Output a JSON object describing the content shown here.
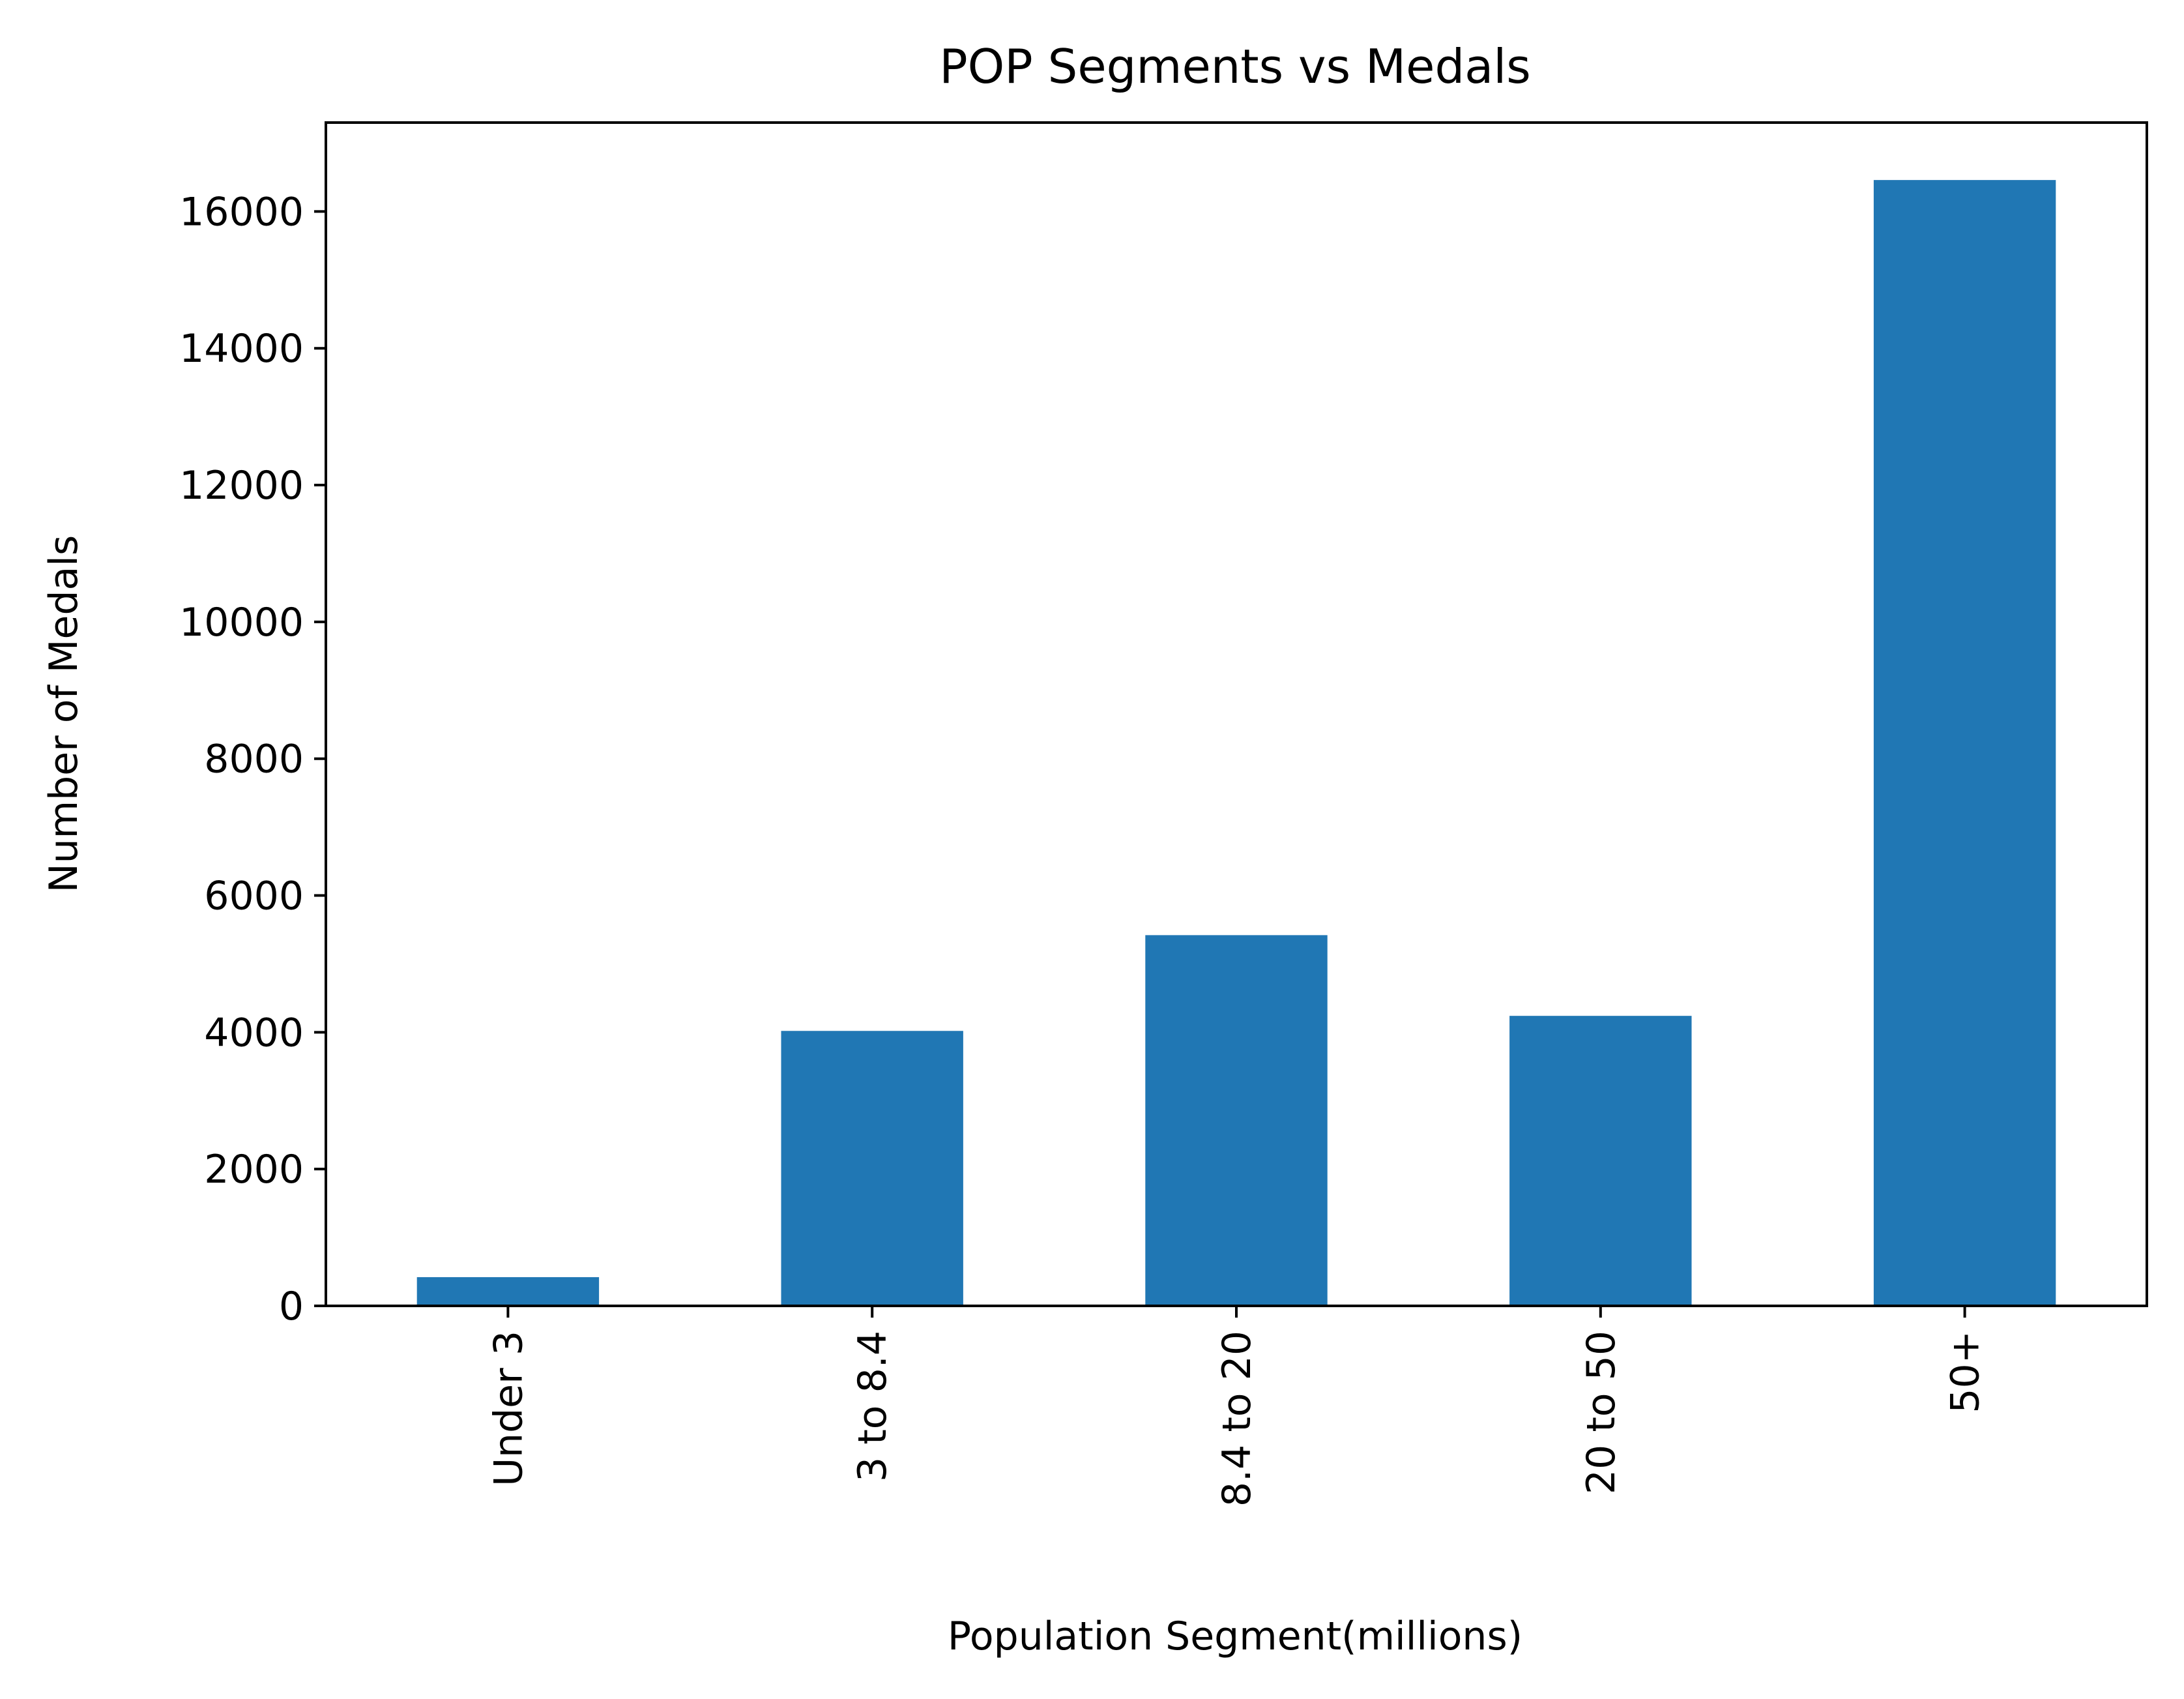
{
  "chart_data": {
    "type": "bar",
    "title": "POP Segments vs Medals",
    "xlabel": "Population Segment(millions)",
    "ylabel": "Number of Medals",
    "categories": [
      "Under 3",
      "3 to 8.4",
      "8.4 to 20",
      "20 to 50",
      "50+"
    ],
    "values": [
      420,
      4020,
      5420,
      4240,
      16460
    ],
    "ylim": [
      0,
      17300
    ],
    "yticks": [
      0,
      2000,
      4000,
      6000,
      8000,
      10000,
      12000,
      14000,
      16000
    ],
    "grid": false,
    "legend": "none",
    "bar_color": "#2077b4"
  }
}
